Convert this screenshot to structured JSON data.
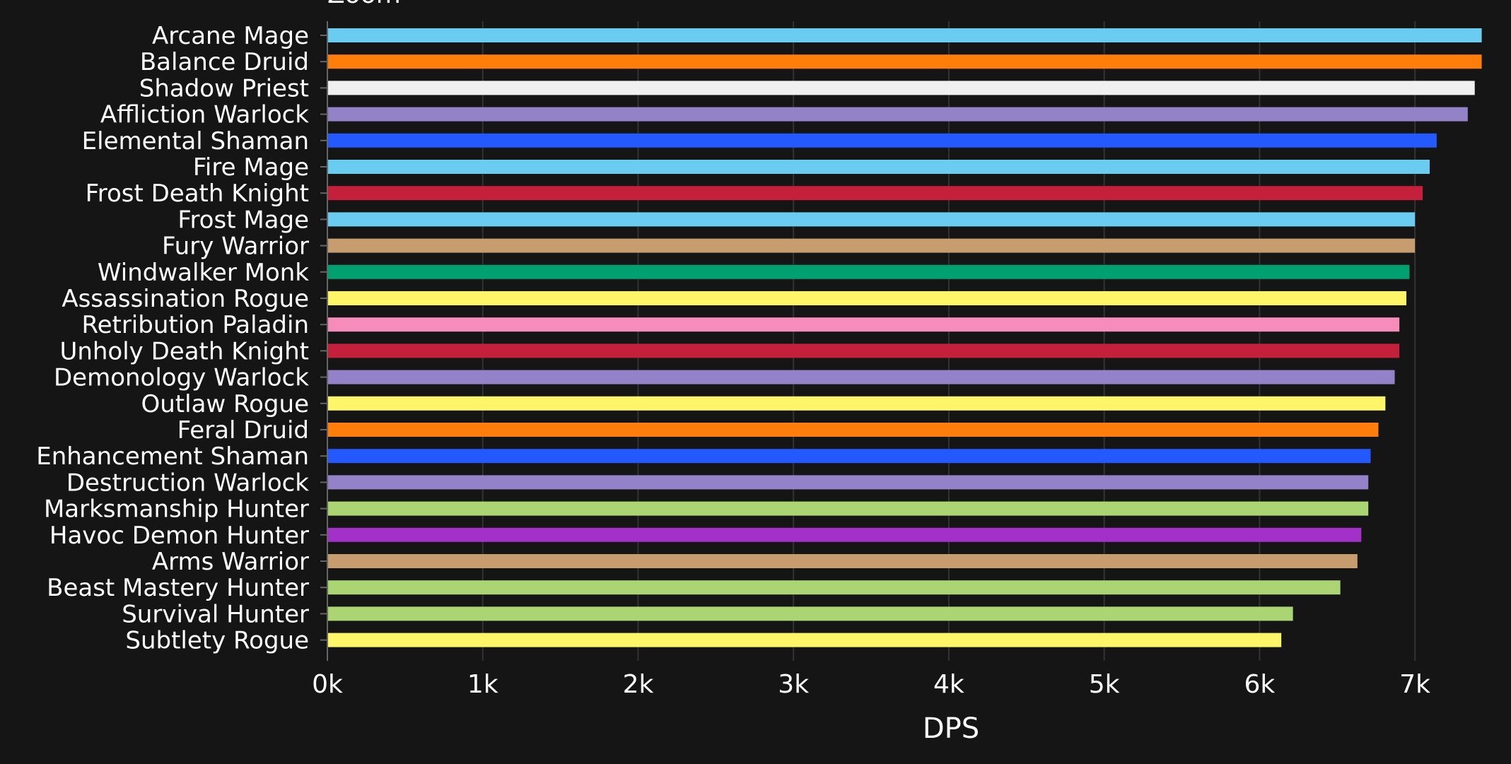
{
  "header": {
    "zoom_label": "Zoom"
  },
  "chart_data": {
    "type": "bar",
    "orientation": "horizontal",
    "title": "",
    "xlabel": "DPS",
    "ylabel": "",
    "xlim": [
      0,
      7450
    ],
    "x_ticks": [
      {
        "value": 0,
        "label": "0k"
      },
      {
        "value": 1000,
        "label": "1k"
      },
      {
        "value": 2000,
        "label": "2k"
      },
      {
        "value": 3000,
        "label": "3k"
      },
      {
        "value": 4000,
        "label": "4k"
      },
      {
        "value": 5000,
        "label": "5k"
      },
      {
        "value": 6000,
        "label": "6k"
      },
      {
        "value": 7000,
        "label": "7k"
      }
    ],
    "grid": true,
    "legend": "none",
    "categories": [
      "Arcane Mage",
      "Balance Druid",
      "Shadow Priest",
      "Affliction Warlock",
      "Elemental Shaman",
      "Fire Mage",
      "Frost Death Knight",
      "Frost Mage",
      "Fury Warrior",
      "Windwalker Monk",
      "Assassination Rogue",
      "Retribution Paladin",
      "Unholy Death Knight",
      "Demonology Warlock",
      "Outlaw Rogue",
      "Feral Druid",
      "Enhancement Shaman",
      "Destruction Warlock",
      "Marksmanship Hunter",
      "Havoc Demon Hunter",
      "Arms Warrior",
      "Beast Mastery Hunter",
      "Survival Hunter",
      "Subtlety Rogue"
    ],
    "values": [
      7430,
      7430,
      7385,
      7340,
      7140,
      7095,
      7050,
      7000,
      7000,
      6965,
      6945,
      6900,
      6900,
      6870,
      6810,
      6765,
      6715,
      6700,
      6700,
      6655,
      6630,
      6520,
      6215,
      6140
    ],
    "colors": [
      "#69ccf0",
      "#ff7d0a",
      "#f0f0f0",
      "#9482c9",
      "#2459ff",
      "#69ccf0",
      "#c41f3b",
      "#69ccf0",
      "#c79c6e",
      "#00a070",
      "#fff569",
      "#f58cba",
      "#c41f3b",
      "#9482c9",
      "#fff569",
      "#ff7d0a",
      "#2459ff",
      "#9482c9",
      "#abd473",
      "#a330c9",
      "#c79c6e",
      "#abd473",
      "#abd473",
      "#fff569"
    ]
  },
  "theme": {
    "background": "#151515",
    "text": "#ffffff",
    "grid": "#333333",
    "axis": "#666666"
  }
}
